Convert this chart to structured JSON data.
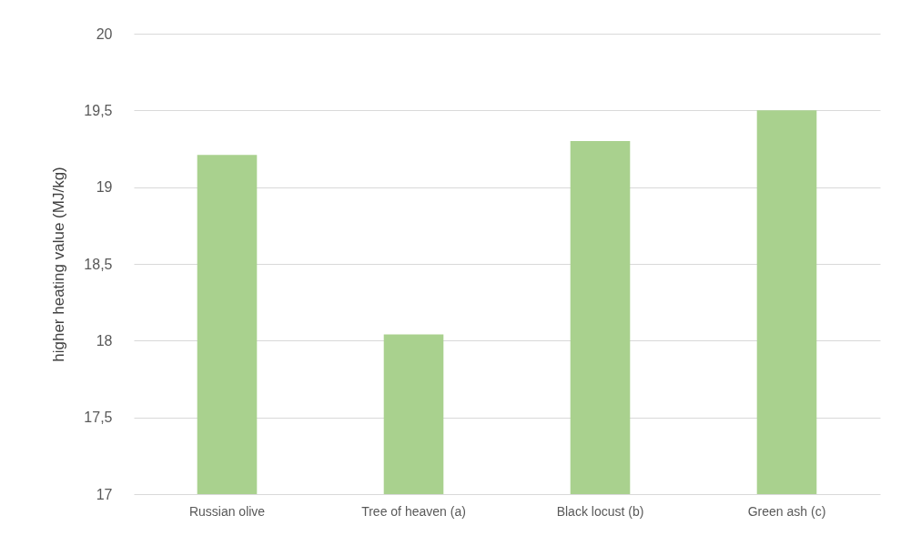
{
  "chart_data": {
    "type": "bar",
    "ylabel": "higher heating value (MJ/kg)",
    "categories": [
      "Russian olive",
      "Tree of heaven (a)",
      "Black locust (b)",
      "Green ash (c)"
    ],
    "values": [
      19.21,
      18.04,
      19.3,
      19.5
    ],
    "color": "#a9d18e",
    "ylim": [
      17,
      20
    ],
    "yticks": [
      17,
      {
        "value": 17.5,
        "label": "17,5"
      },
      18,
      {
        "value": 18.5,
        "label": "18,5"
      },
      19,
      {
        "value": 19.5,
        "label": "19,5"
      },
      20
    ],
    "grid": "y"
  }
}
